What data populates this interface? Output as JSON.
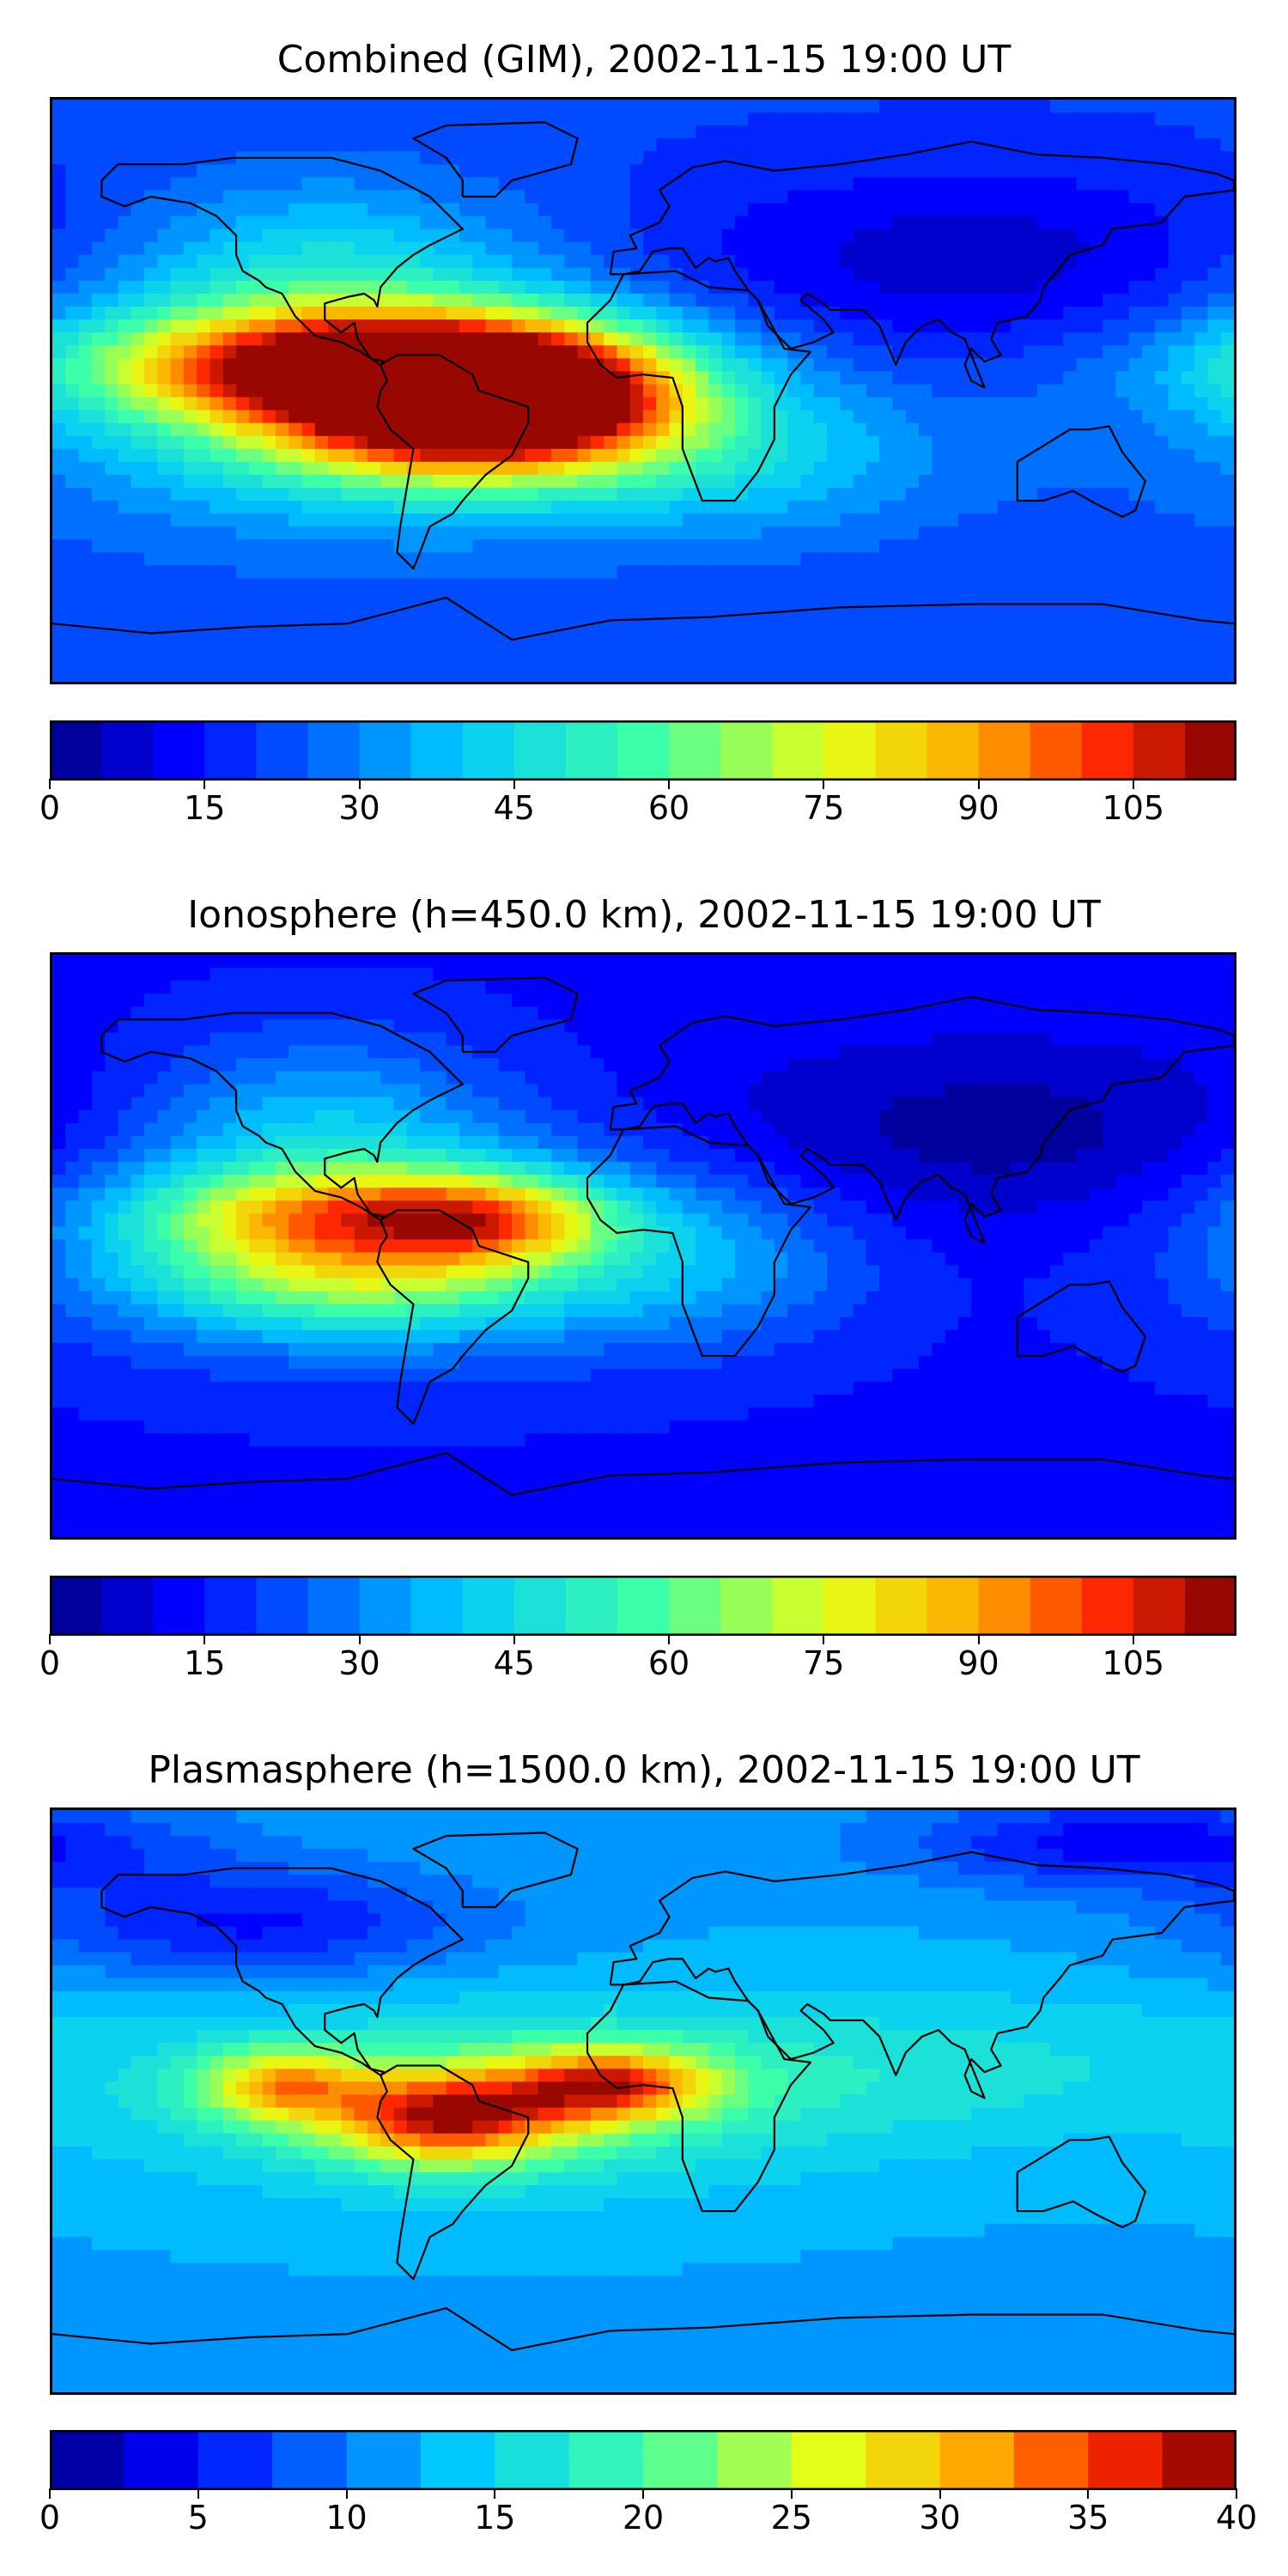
{
  "panels": [
    {
      "id": "combined",
      "title": "Combined (GIM), 2002-11-15 19:00 UT",
      "colorbar": {
        "min": 0,
        "max": 115,
        "step": 5,
        "tick_labels": [
          "0",
          "15",
          "30",
          "45",
          "60",
          "75",
          "90",
          "105"
        ],
        "tick_values": [
          0,
          15,
          30,
          45,
          60,
          75,
          90,
          105
        ]
      },
      "field": {
        "background": 0.18,
        "blobs": [
          {
            "lon": -95,
            "lat": 8,
            "sx": 55,
            "sy": 12,
            "amp": 0.55
          },
          {
            "lon": -55,
            "lat": 0,
            "sx": 35,
            "sy": 15,
            "amp": 0.45
          },
          {
            "lon": -20,
            "lat": 0,
            "sx": 30,
            "sy": 14,
            "amp": 0.3
          },
          {
            "lon": -60,
            "lat": -12,
            "sx": 45,
            "sy": 13,
            "amp": 0.35
          },
          {
            "lon": -90,
            "lat": -5,
            "sx": 70,
            "sy": 28,
            "amp": 0.22
          },
          {
            "lon": -100,
            "lat": 35,
            "sx": 45,
            "sy": 22,
            "amp": 0.18
          },
          {
            "lon": 30,
            "lat": -20,
            "sx": 50,
            "sy": 18,
            "amp": 0.15
          },
          {
            "lon": 100,
            "lat": 40,
            "sx": 70,
            "sy": 20,
            "amp": -0.12
          }
        ]
      }
    },
    {
      "id": "ionosphere",
      "title": "Ionosphere  (h=450.0 km), 2002-11-15 19:00 UT",
      "colorbar": {
        "min": 0,
        "max": 115,
        "step": 5,
        "tick_labels": [
          "0",
          "15",
          "30",
          "45",
          "60",
          "75",
          "90",
          "105"
        ],
        "tick_values": [
          0,
          15,
          30,
          45,
          60,
          75,
          90,
          105
        ]
      },
      "field": {
        "background": 0.12,
        "blobs": [
          {
            "lon": -90,
            "lat": 10,
            "sx": 45,
            "sy": 10,
            "amp": 0.38
          },
          {
            "lon": -45,
            "lat": 8,
            "sx": 25,
            "sy": 10,
            "amp": 0.3
          },
          {
            "lon": -90,
            "lat": -10,
            "sx": 45,
            "sy": 12,
            "amp": 0.28
          },
          {
            "lon": -80,
            "lat": 0,
            "sx": 70,
            "sy": 25,
            "amp": 0.22
          },
          {
            "lon": -100,
            "lat": 35,
            "sx": 40,
            "sy": 22,
            "amp": 0.18
          },
          {
            "lon": 20,
            "lat": -5,
            "sx": 35,
            "sy": 18,
            "amp": 0.12
          },
          {
            "lon": 110,
            "lat": 35,
            "sx": 70,
            "sy": 20,
            "amp": -0.1
          }
        ]
      }
    },
    {
      "id": "plasmasphere",
      "title": "Plasmasphere (h=1500.0 km), 2002-11-15 19:00 UT",
      "colorbar": {
        "min": 0,
        "max": 40,
        "step": 2.5,
        "tick_labels": [
          "0",
          "5",
          "10",
          "15",
          "20",
          "25",
          "30",
          "35",
          "40"
        ],
        "tick_values": [
          0,
          5,
          10,
          15,
          20,
          25,
          30,
          35,
          40
        ]
      },
      "field": {
        "background": 0.3,
        "blobs": [
          {
            "lon": -60,
            "lat": -5,
            "sx": 25,
            "sy": 10,
            "amp": 0.5
          },
          {
            "lon": -10,
            "lat": 5,
            "sx": 22,
            "sy": 8,
            "amp": 0.45
          },
          {
            "lon": -110,
            "lat": 5,
            "sx": 18,
            "sy": 8,
            "amp": 0.35
          },
          {
            "lon": -50,
            "lat": 0,
            "sx": 70,
            "sy": 20,
            "amp": 0.18
          },
          {
            "lon": 90,
            "lat": 10,
            "sx": 80,
            "sy": 18,
            "amp": 0.1
          },
          {
            "lon": -120,
            "lat": 55,
            "sx": 50,
            "sy": 12,
            "amp": -0.18
          },
          {
            "lon": 150,
            "lat": 80,
            "sx": 50,
            "sy": 10,
            "amp": -0.2
          }
        ]
      }
    }
  ]
}
